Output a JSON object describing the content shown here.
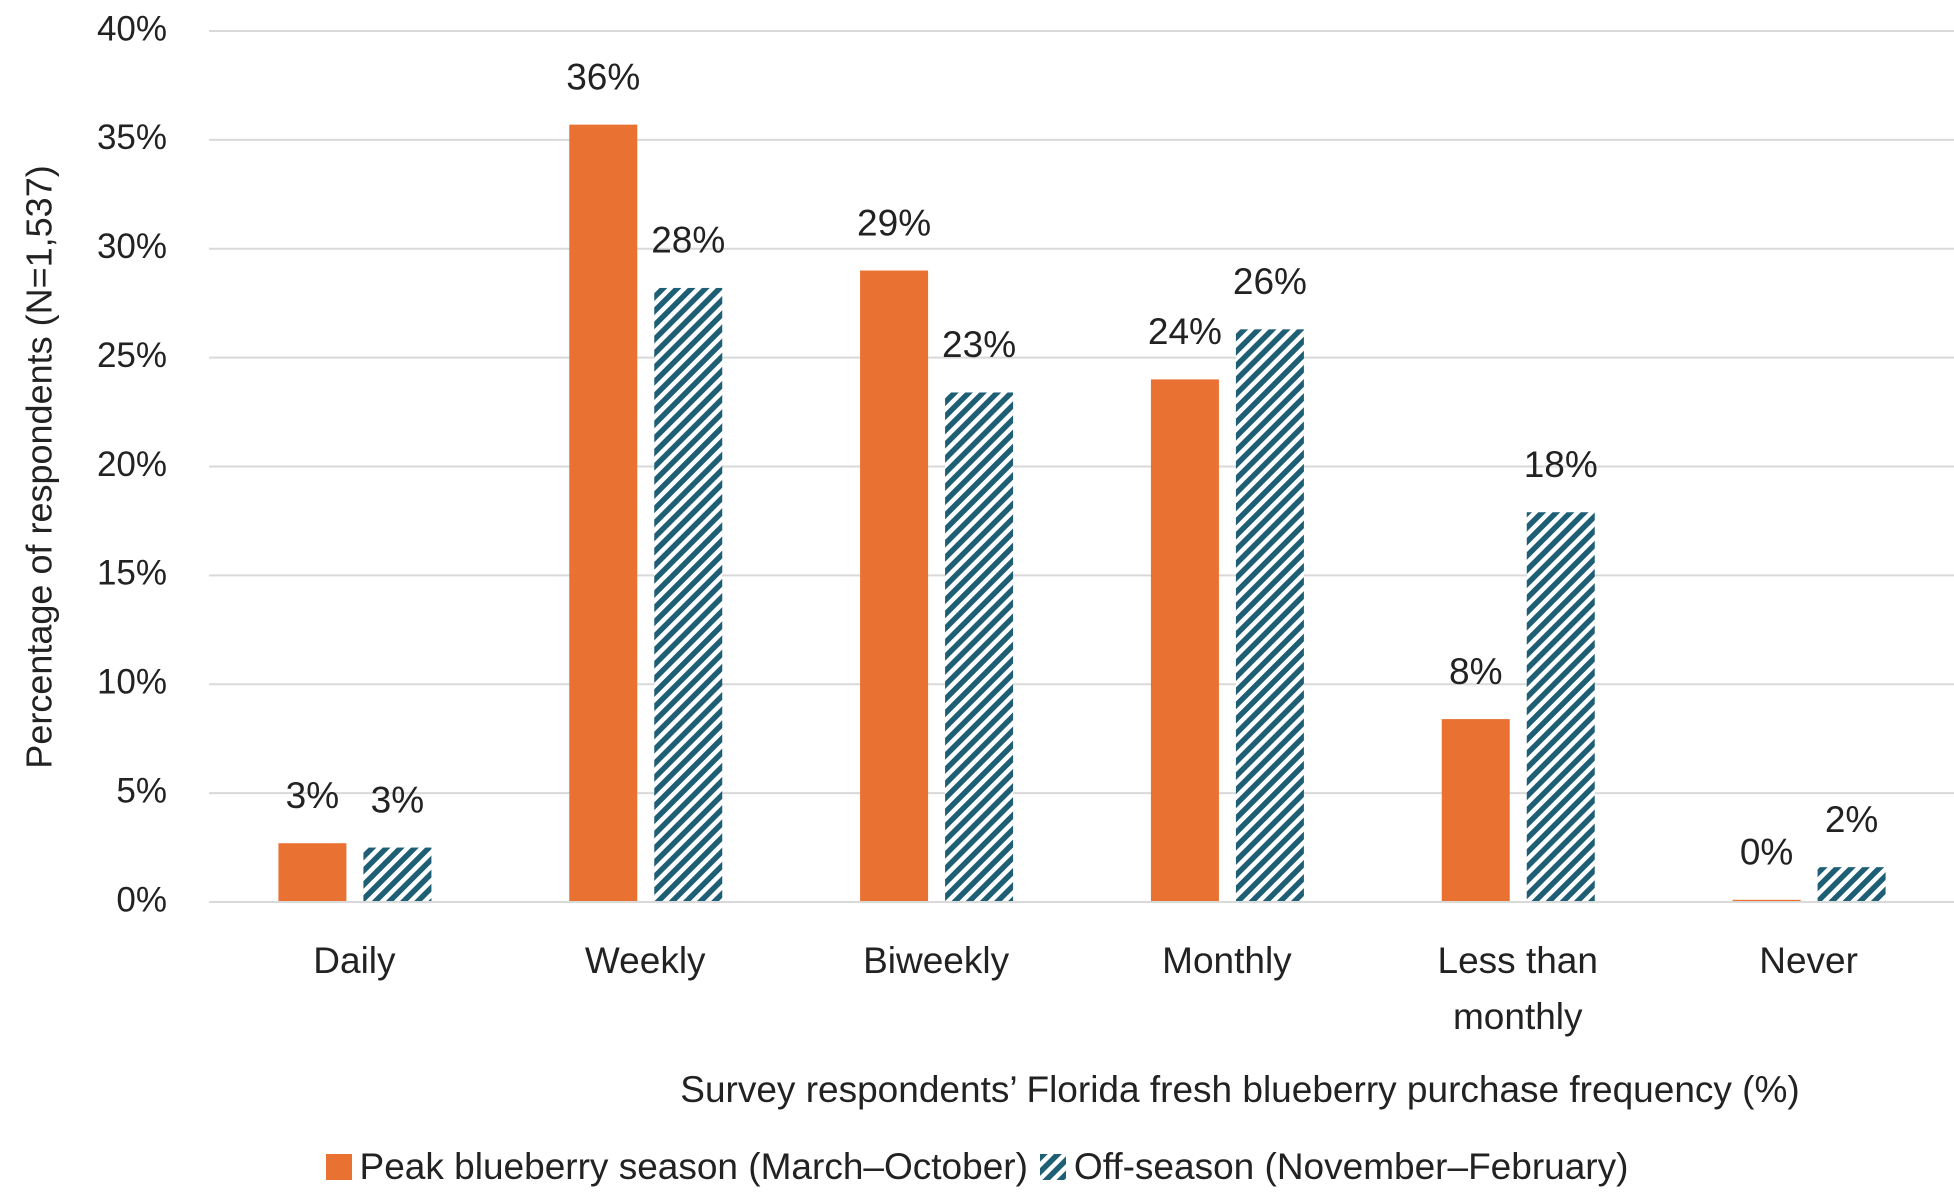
{
  "chart_data": {
    "type": "bar",
    "x_label": "Survey respondents’ Florida fresh blueberry purchase frequency (%)",
    "y_label": "Percentage of respondents (N=1,537)",
    "categories": [
      "Daily",
      "Weekly",
      "Biweekly",
      "Monthly",
      "Less than monthly",
      "Never"
    ],
    "series": [
      {
        "name": "Peak blueberry season (March–October)",
        "color": "#e97132",
        "pattern": "solid",
        "values": [
          2.7,
          35.7,
          29.0,
          24.0,
          8.4,
          0.1
        ],
        "value_labels": [
          "3%",
          "36%",
          "29%",
          "24%",
          "8%",
          "0%"
        ]
      },
      {
        "name": "Off-season (November–February)",
        "color": "#1f5f75",
        "pattern": "diagonal-hatch",
        "values": [
          2.5,
          28.2,
          23.4,
          26.3,
          17.9,
          1.6
        ],
        "value_labels": [
          "3%",
          "28%",
          "23%",
          "26%",
          "18%",
          "2%"
        ]
      }
    ],
    "ylim": [
      0,
      40
    ],
    "yticks": [
      {
        "value": 0,
        "label": "0%"
      },
      {
        "value": 5,
        "label": "5%"
      },
      {
        "value": 10,
        "label": "10%"
      },
      {
        "value": 15,
        "label": "15%"
      },
      {
        "value": 20,
        "label": "20%"
      },
      {
        "value": 25,
        "label": "25%"
      },
      {
        "value": 30,
        "label": "30%"
      },
      {
        "value": 35,
        "label": "35%"
      },
      {
        "value": 40,
        "label": "40%"
      }
    ],
    "grid": true,
    "legend": "bottom"
  }
}
